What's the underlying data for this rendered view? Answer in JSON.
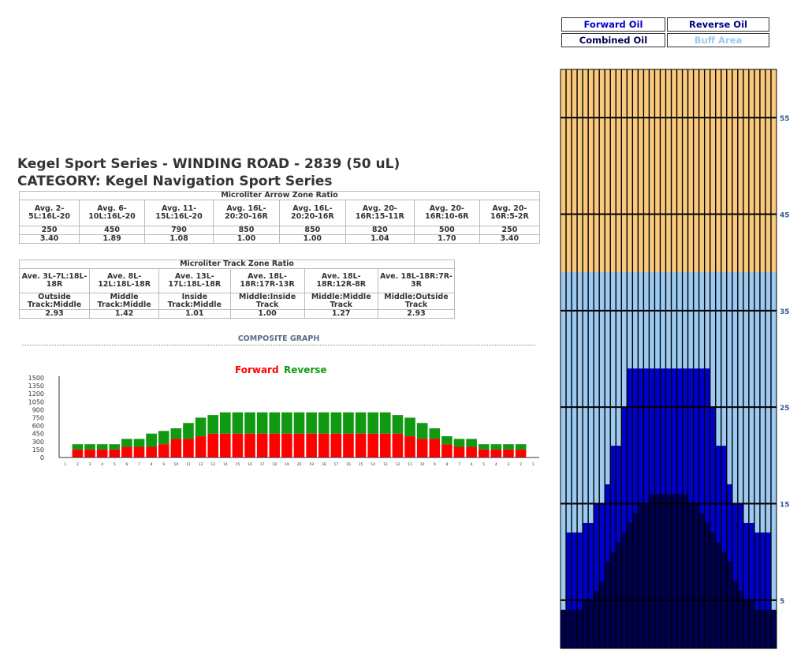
{
  "legend": {
    "forward": {
      "label": "Forward Oil",
      "color": "#0000cc"
    },
    "reverse": {
      "label": "Reverse Oil",
      "color": "#000080"
    },
    "combined": {
      "label": "Combined Oil",
      "color": "#000050"
    },
    "buff": {
      "label": "Buff Area",
      "color": "#9ccaf0"
    }
  },
  "title_line1": "Kegel Sport Series - WINDING ROAD - 2839 (50 uL)",
  "title_line2": "CATEGORY: Kegel Navigation Sport Series",
  "arrow_table": {
    "caption": "Microliter Arrow Zone Ratio",
    "headers": [
      "Avg. 2-5L:16L-20",
      "Avg. 6-10L:16L-20",
      "Avg. 11-15L:16L-20",
      "Avg. 16L-20:20-16R",
      "Avg. 16L-20:20-16R",
      "Avg. 20-16R:15-11R",
      "Avg. 20-16R:10-6R",
      "Avg. 20-16R:5-2R"
    ],
    "microliters": [
      "250",
      "450",
      "790",
      "850",
      "850",
      "820",
      "500",
      "250"
    ],
    "ratios": [
      "3.40",
      "1.89",
      "1.08",
      "1.00",
      "1.00",
      "1.04",
      "1.70",
      "3.40"
    ]
  },
  "track_table": {
    "caption": "Microliter Track Zone Ratio",
    "headers": [
      "Ave. 3L-7L:18L-18R",
      "Ave. 8L-12L:18L-18R",
      "Ave. 13L-17L:18L-18R",
      "Ave. 18L-18R:17R-13R",
      "Ave. 18L-18R:12R-8R",
      "Ave. 18L-18R:7R-3R"
    ],
    "labels": [
      "Outside Track:Middle",
      "Middle Track:Middle",
      "Inside Track:Middle",
      "Middle:Inside Track",
      "Middle:Middle Track",
      "Middle:Outside Track"
    ],
    "ratios": [
      "2.93",
      "1.42",
      "1.01",
      "1.00",
      "1.27",
      "2.93"
    ]
  },
  "composite_label": "COMPOSITE GRAPH",
  "chart_data": [
    {
      "type": "bar",
      "stacked": true,
      "legend": [
        "Forward",
        "Reverse"
      ],
      "legend_colors": [
        "#ff0000",
        "#119911"
      ],
      "categories": [
        "1",
        "2",
        "3",
        "4",
        "5",
        "6",
        "7",
        "8",
        "9",
        "10",
        "11",
        "12",
        "13",
        "14",
        "15",
        "16",
        "17",
        "18",
        "19",
        "20",
        "19",
        "18",
        "17",
        "16",
        "15",
        "14",
        "13",
        "12",
        "11",
        "10",
        "9",
        "8",
        "7",
        "6",
        "5",
        "4",
        "3",
        "2",
        "1"
      ],
      "series": [
        {
          "name": "Forward",
          "color": "#ff0000",
          "values": [
            0,
            150,
            150,
            150,
            150,
            200,
            200,
            200,
            250,
            350,
            350,
            400,
            450,
            450,
            450,
            450,
            450,
            450,
            450,
            450,
            450,
            450,
            450,
            450,
            450,
            450,
            450,
            450,
            400,
            350,
            350,
            250,
            200,
            200,
            150,
            150,
            150,
            150,
            0
          ]
        },
        {
          "name": "Reverse",
          "color": "#119911",
          "values": [
            0,
            100,
            100,
            100,
            100,
            150,
            150,
            250,
            250,
            200,
            300,
            350,
            350,
            400,
            400,
            400,
            400,
            400,
            400,
            400,
            400,
            400,
            400,
            400,
            400,
            400,
            400,
            350,
            350,
            300,
            200,
            150,
            150,
            150,
            100,
            100,
            100,
            100,
            0
          ]
        }
      ],
      "y_ticks": [
        "1500",
        "1350",
        "1200",
        "1050",
        "900",
        "750",
        "600",
        "450",
        "300",
        "150",
        "0"
      ],
      "ylim": [
        0,
        1500
      ]
    },
    {
      "type": "heatmap",
      "x_boards": 39,
      "y_ticks": [
        "55",
        "45",
        "35",
        "25",
        "15",
        "5"
      ],
      "ylim": [
        0,
        60
      ],
      "buff_start_ft": 39,
      "forward_lengths_ft": [
        4,
        12,
        12,
        12,
        13,
        13,
        15,
        15,
        17,
        21,
        21,
        25,
        29,
        29,
        29,
        29,
        29,
        29,
        29,
        29,
        29,
        29,
        29,
        29,
        29,
        29,
        29,
        25,
        21,
        21,
        17,
        15,
        15,
        13,
        13,
        12,
        12,
        12,
        4
      ],
      "reverse_lengths_ft": [
        4,
        4,
        4,
        4,
        5,
        5,
        6,
        7,
        9,
        10,
        11,
        12,
        13,
        14,
        15,
        15,
        16,
        16,
        16,
        16,
        16,
        16,
        16,
        15,
        15,
        14,
        13,
        12,
        11,
        10,
        9,
        7,
        6,
        5,
        5,
        4,
        4,
        4,
        4
      ],
      "colors": {
        "unoiled": "#f9c97d",
        "forward": "#0000cc",
        "reverse": "#000080",
        "combined": "#000050",
        "buff": "#9ccaf0",
        "gridline": "#000000"
      }
    }
  ]
}
